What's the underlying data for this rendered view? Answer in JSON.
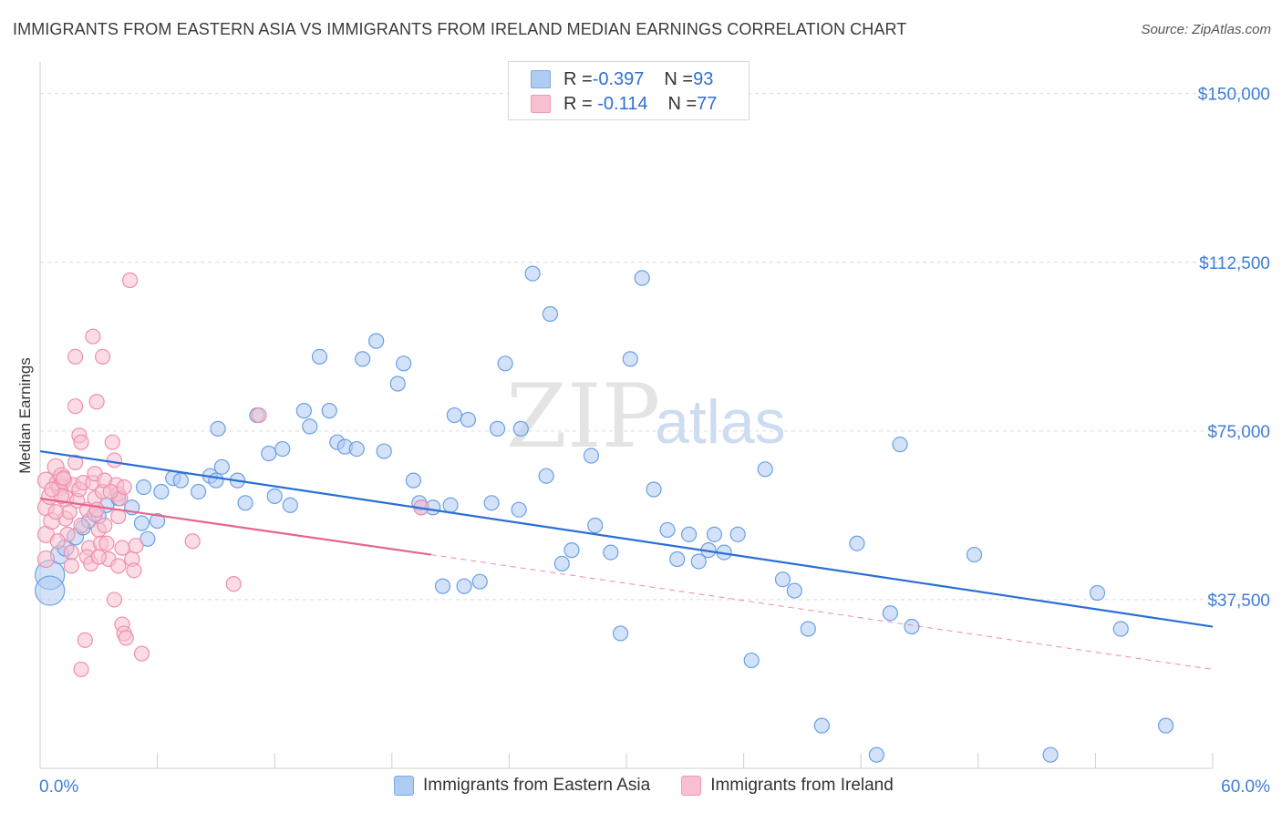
{
  "title": "IMMIGRANTS FROM EASTERN ASIA VS IMMIGRANTS FROM IRELAND MEDIAN EARNINGS CORRELATION CHART",
  "source": "Source: ZipAtlas.com",
  "watermark": {
    "zip": "ZIP",
    "atlas": "atlas"
  },
  "legend": {
    "rows": [
      {
        "r_label": "R = ",
        "r_value": "-0.397",
        "n_label": "N = ",
        "n_value": "93",
        "color": "#aecbf2"
      },
      {
        "r_label": "R = ",
        "r_value": " -0.114",
        "n_label": "N = ",
        "n_value": "77",
        "color": "#f8bfd0"
      }
    ]
  },
  "bottom_legend": [
    {
      "label": "Immigrants from Eastern Asia",
      "color": "#aecbf2"
    },
    {
      "label": "Immigrants from Ireland",
      "color": "#f8bfd0"
    }
  ],
  "chart_data": {
    "type": "scatter",
    "title": "IMMIGRANTS FROM EASTERN ASIA VS IMMIGRANTS FROM IRELAND MEDIAN EARNINGS CORRELATION CHART",
    "xlabel": "",
    "ylabel": "Median Earnings",
    "xlim": [
      0,
      60
    ],
    "ylim": [
      0,
      155000
    ],
    "x_tick_labels": [
      "0.0%",
      "60.0%"
    ],
    "y_ticks": [
      37500,
      75000,
      112500,
      150000
    ],
    "y_tick_labels": [
      "$37,500",
      "$75,000",
      "$112,500",
      "$150,000"
    ],
    "grid": "horizontal dashed",
    "series": [
      {
        "name": "Immigrants from Eastern Asia",
        "color": "#6aa0e4",
        "fill": "#aecbf2",
        "trend": {
          "x": [
            0,
            60
          ],
          "y": [
            70500,
            31500
          ],
          "color": "#2a6fd6"
        },
        "points": [
          [
            0.5,
            43000,
            16
          ],
          [
            0.5,
            39500,
            16
          ],
          [
            1.0,
            47500,
            10
          ],
          [
            1.3,
            49000,
            9
          ],
          [
            1.8,
            51500,
            9
          ],
          [
            2.2,
            53500,
            8
          ],
          [
            2.5,
            55000,
            8
          ],
          [
            3.0,
            56000,
            8
          ],
          [
            3.4,
            58500,
            8
          ],
          [
            4.0,
            60000,
            8
          ],
          [
            4.7,
            58000,
            8
          ],
          [
            5.5,
            51000,
            8
          ],
          [
            5.2,
            54500,
            8
          ],
          [
            5.3,
            62500,
            8
          ],
          [
            6.2,
            61500,
            8
          ],
          [
            6.8,
            64500,
            8
          ],
          [
            7.2,
            64000,
            8
          ],
          [
            8.1,
            61500,
            8
          ],
          [
            8.7,
            65000,
            8
          ],
          [
            9.0,
            64000,
            8
          ],
          [
            9.3,
            67000,
            8
          ],
          [
            9.1,
            75500,
            8
          ],
          [
            10.1,
            64000,
            8
          ],
          [
            10.5,
            59000,
            8
          ],
          [
            11.1,
            78500,
            8
          ],
          [
            11.7,
            70000,
            8
          ],
          [
            12.0,
            60500,
            8
          ],
          [
            12.4,
            71000,
            8
          ],
          [
            12.8,
            58500,
            8
          ],
          [
            13.5,
            79500,
            8
          ],
          [
            13.8,
            76000,
            8
          ],
          [
            14.8,
            79500,
            8
          ],
          [
            15.2,
            72500,
            8
          ],
          [
            15.6,
            71500,
            8
          ],
          [
            14.3,
            91500,
            8
          ],
          [
            16.2,
            71000,
            8
          ],
          [
            16.5,
            91000,
            8
          ],
          [
            17.2,
            95000,
            8
          ],
          [
            17.6,
            70500,
            8
          ],
          [
            18.3,
            85500,
            8
          ],
          [
            18.6,
            90000,
            8
          ],
          [
            19.1,
            64000,
            8
          ],
          [
            19.5,
            58000,
            8
          ],
          [
            20.1,
            58000,
            8
          ],
          [
            20.6,
            40500,
            8
          ],
          [
            21.0,
            58500,
            8
          ],
          [
            21.2,
            78500,
            8
          ],
          [
            21.9,
            77500,
            8
          ],
          [
            21.7,
            40500,
            8
          ],
          [
            22.5,
            41500,
            8
          ],
          [
            23.1,
            59000,
            8
          ],
          [
            23.4,
            75500,
            8
          ],
          [
            23.8,
            90000,
            8
          ],
          [
            24.5,
            57500,
            8
          ],
          [
            24.6,
            75500,
            8
          ],
          [
            25.2,
            110000,
            8
          ],
          [
            26.1,
            101000,
            8
          ],
          [
            25.9,
            65000,
            8
          ],
          [
            26.7,
            45500,
            8
          ],
          [
            27.2,
            48500,
            8
          ],
          [
            28.2,
            69500,
            8
          ],
          [
            28.4,
            54000,
            8
          ],
          [
            29.2,
            48000,
            8
          ],
          [
            29.7,
            30000,
            8
          ],
          [
            30.2,
            91000,
            8
          ],
          [
            30.8,
            109000,
            8
          ],
          [
            31.4,
            62000,
            8
          ],
          [
            32.1,
            53000,
            8
          ],
          [
            32.6,
            46500,
            8
          ],
          [
            33.2,
            52000,
            8
          ],
          [
            33.7,
            46000,
            8
          ],
          [
            34.2,
            48500,
            8
          ],
          [
            34.5,
            52000,
            8
          ],
          [
            35.0,
            48000,
            8
          ],
          [
            35.7,
            52000,
            8
          ],
          [
            36.4,
            24000,
            8
          ],
          [
            37.1,
            66500,
            8
          ],
          [
            38.0,
            42000,
            8
          ],
          [
            38.6,
            39500,
            8
          ],
          [
            39.3,
            31000,
            8
          ],
          [
            40.0,
            9500,
            8
          ],
          [
            41.8,
            50000,
            8
          ],
          [
            42.8,
            3000,
            8
          ],
          [
            43.5,
            34500,
            8
          ],
          [
            44.0,
            72000,
            8
          ],
          [
            44.6,
            31500,
            8
          ],
          [
            47.8,
            47500,
            8
          ],
          [
            51.7,
            3000,
            8
          ],
          [
            54.1,
            39000,
            8
          ],
          [
            55.3,
            31000,
            8
          ],
          [
            57.6,
            9500,
            8
          ],
          [
            19.4,
            59000,
            8
          ],
          [
            6.0,
            55000,
            8
          ]
        ]
      },
      {
        "name": "Immigrants from Ireland",
        "color": "#ee8fac",
        "fill": "#f8bfd0",
        "trend": {
          "x": [
            0,
            20
          ],
          "y": [
            60000,
            47500
          ],
          "dash_to": [
            60,
            22000
          ],
          "color": "#e8648c"
        },
        "points": [
          [
            0.3,
            64000,
            9
          ],
          [
            0.3,
            58000,
            9
          ],
          [
            0.3,
            52000,
            9
          ],
          [
            0.3,
            46500,
            9
          ],
          [
            0.5,
            60500,
            9
          ],
          [
            0.6,
            55000,
            9
          ],
          [
            0.8,
            67000,
            9
          ],
          [
            0.9,
            63500,
            9
          ],
          [
            1.0,
            62500,
            9
          ],
          [
            1.1,
            65000,
            9
          ],
          [
            1.2,
            64000,
            9
          ],
          [
            1.3,
            60000,
            9
          ],
          [
            1.3,
            55500,
            8
          ],
          [
            1.4,
            52000,
            8
          ],
          [
            1.5,
            57000,
            8
          ],
          [
            1.6,
            48000,
            8
          ],
          [
            1.7,
            63000,
            8
          ],
          [
            1.8,
            68000,
            8
          ],
          [
            1.9,
            59500,
            8
          ],
          [
            1.6,
            45000,
            8
          ],
          [
            2.0,
            62000,
            8
          ],
          [
            2.1,
            54000,
            8
          ],
          [
            2.2,
            63500,
            8
          ],
          [
            1.8,
            91500,
            8
          ],
          [
            1.8,
            80500,
            8
          ],
          [
            2.0,
            74000,
            8
          ],
          [
            2.1,
            72500,
            8
          ],
          [
            2.4,
            57500,
            8
          ],
          [
            2.5,
            49000,
            8
          ],
          [
            2.4,
            47000,
            8
          ],
          [
            2.6,
            45500,
            8
          ],
          [
            2.7,
            63500,
            8
          ],
          [
            2.3,
            28500,
            8
          ],
          [
            2.1,
            22000,
            8
          ],
          [
            2.8,
            65500,
            8
          ],
          [
            2.8,
            60000,
            8
          ],
          [
            2.8,
            56500,
            8
          ],
          [
            3.0,
            53000,
            8
          ],
          [
            3.1,
            50000,
            8
          ],
          [
            2.7,
            96000,
            8
          ],
          [
            2.9,
            81500,
            8
          ],
          [
            3.2,
            91500,
            8
          ],
          [
            3.2,
            61500,
            8
          ],
          [
            3.3,
            64000,
            8
          ],
          [
            3.3,
            54000,
            8
          ],
          [
            3.4,
            50000,
            8
          ],
          [
            3.5,
            46500,
            8
          ],
          [
            3.7,
            72500,
            8
          ],
          [
            3.8,
            68500,
            8
          ],
          [
            3.8,
            37500,
            8
          ],
          [
            3.9,
            63000,
            8
          ],
          [
            4.0,
            61000,
            8
          ],
          [
            4.0,
            56000,
            8
          ],
          [
            4.1,
            60000,
            8
          ],
          [
            4.2,
            49000,
            8
          ],
          [
            4.0,
            45000,
            8
          ],
          [
            4.2,
            32000,
            8
          ],
          [
            4.3,
            30000,
            8
          ],
          [
            4.4,
            29000,
            8
          ],
          [
            4.6,
            108500,
            8
          ],
          [
            4.7,
            46500,
            8
          ],
          [
            4.8,
            44000,
            8
          ],
          [
            4.9,
            49500,
            8
          ],
          [
            5.2,
            25500,
            8
          ],
          [
            7.8,
            50500,
            8
          ],
          [
            9.9,
            41000,
            8
          ],
          [
            11.2,
            78500,
            8
          ],
          [
            19.5,
            58000,
            8
          ],
          [
            0.9,
            50500,
            8
          ],
          [
            1.1,
            60500,
            8
          ],
          [
            0.6,
            62000,
            8
          ],
          [
            1.2,
            64500,
            8
          ],
          [
            2.9,
            57500,
            8
          ],
          [
            3.6,
            61500,
            8
          ],
          [
            4.3,
            62500,
            8
          ],
          [
            0.8,
            57000,
            8
          ],
          [
            3.0,
            47000,
            8
          ]
        ]
      }
    ]
  }
}
